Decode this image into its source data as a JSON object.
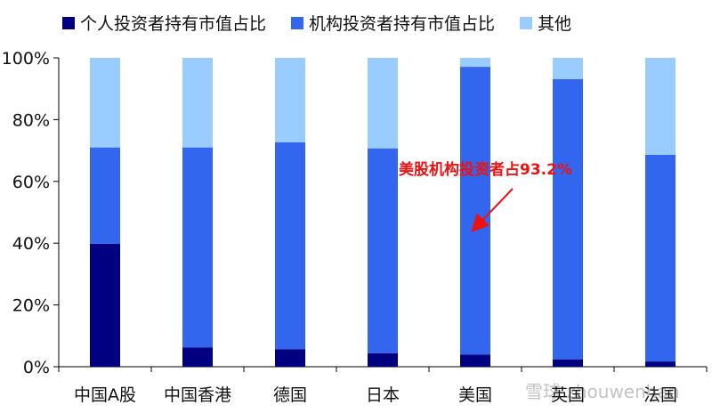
{
  "chart_data": {
    "type": "bar",
    "stacked": true,
    "categories": [
      "中国A股",
      "中国香港",
      "德国",
      "日本",
      "美国",
      "英国",
      "法国"
    ],
    "series": [
      {
        "name": "个人投资者持有市值占比",
        "color": "#000080",
        "values": [
          39.8,
          6.2,
          5.7,
          4.4,
          3.9,
          2.4,
          1.7
        ]
      },
      {
        "name": "机构投资者持有市值占比",
        "color": "#3366ee",
        "values": [
          31.2,
          64.8,
          67.0,
          66.3,
          93.2,
          90.7,
          66.9
        ]
      },
      {
        "name": "其他",
        "color": "#99ccff",
        "values": [
          29.0,
          29.0,
          27.3,
          29.3,
          2.9,
          6.9,
          31.4
        ]
      }
    ],
    "ylim": [
      0,
      100
    ],
    "y_ticks": [
      "0%",
      "20%",
      "40%",
      "60%",
      "80%",
      "100%"
    ],
    "annotation": {
      "text": "美股机构投资者占93.2%",
      "color": "#ee1111"
    },
    "grid": false,
    "legend": "top"
  },
  "watermark": "雪球 zhouwenhan"
}
